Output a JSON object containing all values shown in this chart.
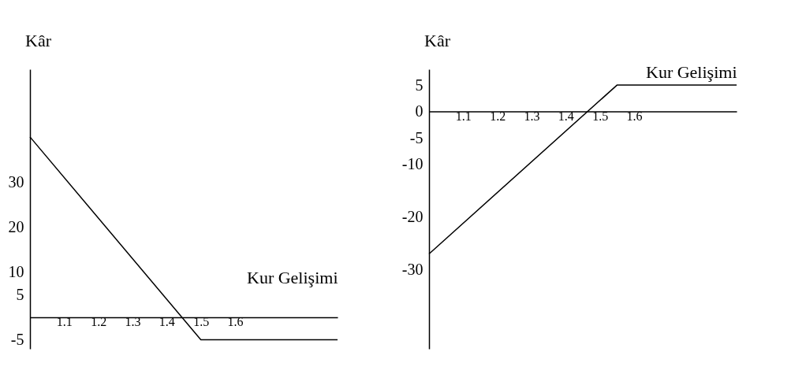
{
  "chart_data": [
    {
      "type": "line",
      "xlabel": "Kur Gelişimi",
      "ylabel": "Kâr",
      "x": [
        1.0,
        1.5,
        1.9
      ],
      "series": [
        {
          "color": "#000000",
          "values": [
            40,
            -5,
            -5
          ]
        }
      ],
      "xlim": [
        1.0,
        1.9
      ],
      "xticks": [
        1.1,
        1.2,
        1.3,
        1.4,
        1.5,
        1.6
      ],
      "ylim": [
        -7,
        55
      ],
      "yticks": [
        -5,
        5,
        10,
        20,
        30
      ],
      "grid": false
    },
    {
      "type": "line",
      "xlabel": "Kur Gelişimi",
      "ylabel": "Kâr",
      "x": [
        1.0,
        1.55,
        1.9
      ],
      "series": [
        {
          "color": "#000000",
          "values": [
            -27,
            5,
            5
          ]
        }
      ],
      "xlim": [
        1.0,
        1.9
      ],
      "xticks": [
        1.1,
        1.2,
        1.3,
        1.4,
        1.5,
        1.6
      ],
      "ylim": [
        -45,
        8
      ],
      "yticks": [
        5,
        0,
        -5,
        -10,
        -20,
        -30
      ],
      "grid": false
    }
  ]
}
